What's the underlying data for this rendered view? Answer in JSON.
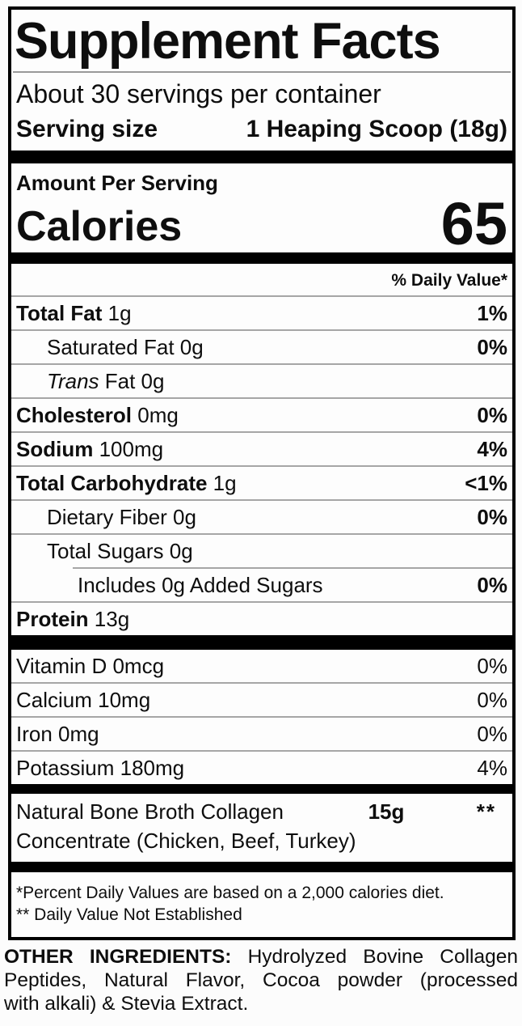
{
  "title": "Supplement Facts",
  "servings": {
    "per_container": "About 30 servings per container",
    "serving_size_label": "Serving size",
    "serving_size_value": "1 Heaping Scoop (18g)"
  },
  "calories": {
    "amount_per_serving_label": "Amount Per Serving",
    "label": "Calories",
    "value": "65"
  },
  "daily_value_header": "% Daily Value*",
  "nutrients": [
    {
      "bold": "Total Fat",
      "rest": " 1g",
      "dv": "1%"
    },
    {
      "name": "Saturated Fat 0g",
      "dv": "0%"
    },
    {
      "italic": "Trans",
      "rest": " Fat 0g",
      "dv": ""
    },
    {
      "bold": "Cholesterol",
      "rest": " 0mg",
      "dv": "0%"
    },
    {
      "bold": "Sodium",
      "rest": " 100mg",
      "dv": "4%"
    },
    {
      "bold": "Total Carbohydrate",
      "rest": " 1g",
      "dv": "<1%"
    },
    {
      "name": "Dietary Fiber 0g",
      "dv": "0%"
    },
    {
      "name": "Total Sugars 0g",
      "dv": ""
    },
    {
      "name": "Includes 0g Added Sugars",
      "dv": "0%"
    },
    {
      "bold": "Protein",
      "rest": " 13g",
      "dv": ""
    }
  ],
  "micronutrients": [
    {
      "name": "Vitamin D 0mcg",
      "dv": "0%"
    },
    {
      "name": "Calcium 10mg",
      "dv": "0%"
    },
    {
      "name": "Iron 0mg",
      "dv": "0%"
    },
    {
      "name": "Potassium 180mg",
      "dv": "4%"
    }
  ],
  "blend": {
    "name_line1": "Natural Bone Broth Collagen",
    "amount": "15g",
    "dv": "**",
    "name_line2": "Concentrate (Chicken, Beef, Turkey)"
  },
  "footnotes": [
    "*Percent Daily Values are based on a 2,000 calories diet.",
    "** Daily Value Not Established"
  ],
  "other_ingredients": {
    "label": "OTHER INGREDIENTS:",
    "line1_rest": " Hydrolyzed Bovine Collagen",
    "line2": "Peptides, Natural Flavor, Cocoa powder (processed",
    "line3": "with alkali) & Stevia Extract."
  },
  "colors": {
    "text": "#0e0e0e",
    "bars": "#000000",
    "rules": "#a6a6a6",
    "background": "#fcfcfc"
  }
}
